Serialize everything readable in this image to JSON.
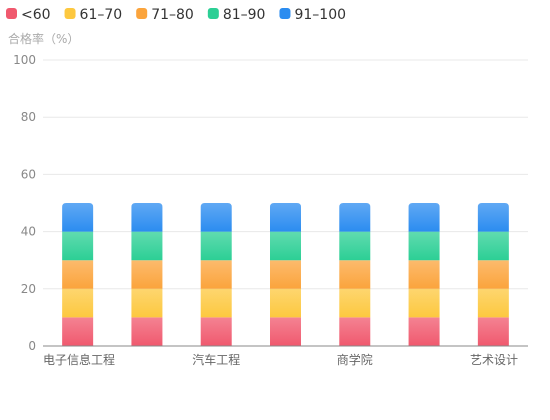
{
  "chart_data": {
    "type": "bar",
    "stacked": true,
    "y_axis_title": "合格率（%）",
    "ylim": [
      0,
      100
    ],
    "y_ticks": [
      0,
      20,
      40,
      60,
      80,
      100
    ],
    "grid": true,
    "legend_position": "top-left",
    "categories": [
      "电子信息工程",
      "",
      "汽车工程",
      "",
      "商学院",
      "",
      "艺术设计"
    ],
    "series": [
      {
        "name": "<60",
        "color": "#f0596e",
        "values": [
          10,
          10,
          10,
          10,
          10,
          10,
          10
        ]
      },
      {
        "name": "61–70",
        "color": "#fdc83f",
        "values": [
          10,
          10,
          10,
          10,
          10,
          10,
          10
        ]
      },
      {
        "name": "71–80",
        "color": "#fba43c",
        "values": [
          10,
          10,
          10,
          10,
          10,
          10,
          10
        ]
      },
      {
        "name": "81–90",
        "color": "#2ccf95",
        "values": [
          10,
          10,
          10,
          10,
          10,
          10,
          10
        ]
      },
      {
        "name": "91–100",
        "color": "#2b8cf0",
        "values": [
          10,
          10,
          10,
          10,
          10,
          10,
          10
        ]
      }
    ]
  }
}
